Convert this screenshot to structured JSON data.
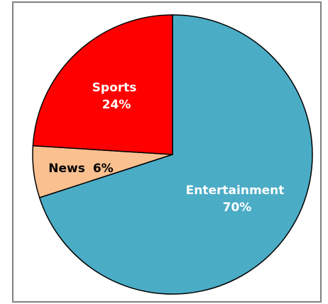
{
  "chart_data": {
    "type": "pie",
    "title": "",
    "start_angle_deg": 0,
    "direction": "clockwise",
    "slices": [
      {
        "name": "Entertainment",
        "value": 70,
        "value_label": "70%",
        "color": "#4bacc6",
        "label_color": "#ffffff"
      },
      {
        "name": "News",
        "value": 6,
        "value_label": "6%",
        "color": "#fac090",
        "label_color": "#000000"
      },
      {
        "name": "Sports",
        "value": 24,
        "value_label": "24%",
        "color": "#ff0000",
        "label_color": "#ffffff"
      }
    ],
    "legend": "none",
    "border_color": "#7f7f7f"
  }
}
